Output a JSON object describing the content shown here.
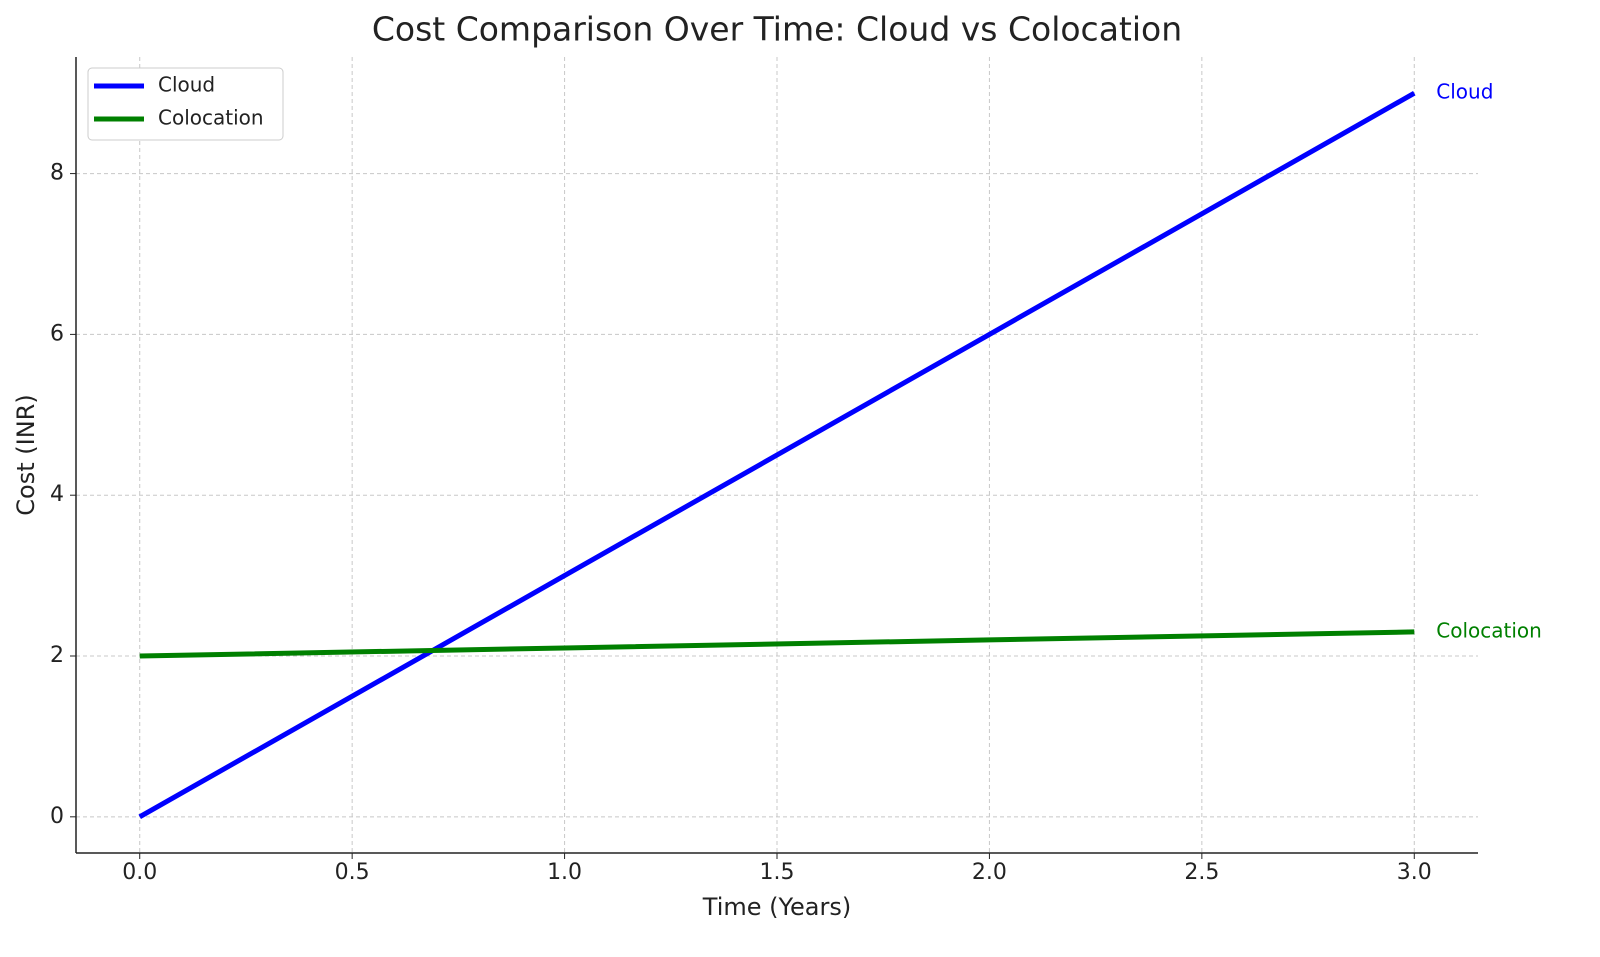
{
  "chart_data": {
    "type": "line",
    "title": "Cost Comparison Over Time: Cloud vs Colocation",
    "x_label": "Time (Years)",
    "y_label": "Cost (INR)",
    "x": [
      0,
      1,
      2,
      3
    ],
    "series": [
      {
        "name": "Cloud",
        "color": "#0000ff",
        "values": [
          0,
          3,
          6,
          9
        ]
      },
      {
        "name": "Colocation",
        "color": "#008000",
        "values": [
          2,
          2.1,
          2.2,
          2.3
        ]
      }
    ],
    "xlim": [
      -0.15,
      3.15
    ],
    "xticks": [
      {
        "value": 0,
        "label": "0.0"
      },
      0.5,
      {
        "value": 1,
        "label": "1.0"
      },
      1.5,
      {
        "value": 2,
        "label": "2.0"
      },
      2.5,
      {
        "value": 3,
        "label": "3.0"
      }
    ],
    "ylim": [
      -0.45,
      9.45
    ],
    "yticks": [
      0,
      2,
      4,
      6,
      8
    ],
    "grid": true,
    "legend": "upper-left",
    "end_labels": true
  }
}
